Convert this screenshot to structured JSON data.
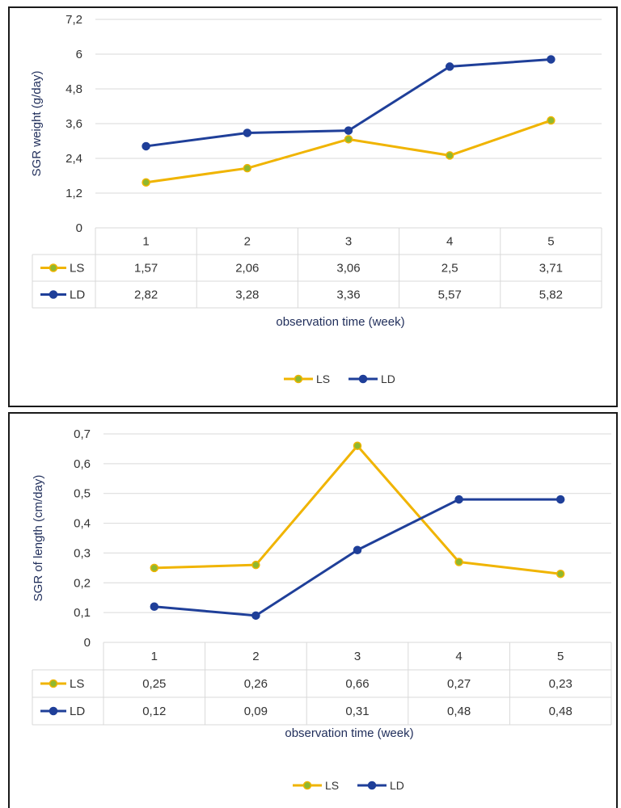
{
  "colors": {
    "LS": "#f0b400",
    "LD": "#1f3f99",
    "LS_marker": "#8fb82f",
    "grid": "#d9d9d9"
  },
  "chart_data": [
    {
      "type": "line",
      "categories": [
        "1",
        "2",
        "3",
        "4",
        "5"
      ],
      "series": [
        {
          "name": "LS",
          "values": [
            1.57,
            2.06,
            3.06,
            2.5,
            3.71
          ],
          "labels": [
            "1,57",
            "2,06",
            "3,06",
            "2,5",
            "3,71"
          ]
        },
        {
          "name": "LD",
          "values": [
            2.82,
            3.28,
            3.36,
            5.57,
            5.82
          ],
          "labels": [
            "2,82",
            "3,28",
            "3,36",
            "5,57",
            "5,82"
          ]
        }
      ],
      "ylabel": "SGR weight (g/day)",
      "xlabel": "observation time (week)",
      "ylim": [
        0,
        7.2
      ],
      "yticks": [
        "0",
        "1,2",
        "2,4",
        "3,6",
        "4,8",
        "6",
        "7,2"
      ],
      "grid": true,
      "legend": "bottom",
      "data_table": true
    },
    {
      "type": "line",
      "categories": [
        "1",
        "2",
        "3",
        "4",
        "5"
      ],
      "series": [
        {
          "name": "LS",
          "values": [
            0.25,
            0.26,
            0.66,
            0.27,
            0.23
          ],
          "labels": [
            "0,25",
            "0,26",
            "0,66",
            "0,27",
            "0,23"
          ]
        },
        {
          "name": "LD",
          "values": [
            0.12,
            0.09,
            0.31,
            0.48,
            0.48
          ],
          "labels": [
            "0,12",
            "0,09",
            "0,31",
            "0,48",
            "0,48"
          ]
        }
      ],
      "ylabel": "SGR of length (cm/day)",
      "xlabel": "observation time (week)",
      "ylim": [
        0,
        0.7
      ],
      "yticks": [
        "0",
        "0,1",
        "0,2",
        "0,3",
        "0,4",
        "0,5",
        "0,6",
        "0,7"
      ],
      "grid": true,
      "legend": "bottom",
      "data_table": true
    }
  ]
}
